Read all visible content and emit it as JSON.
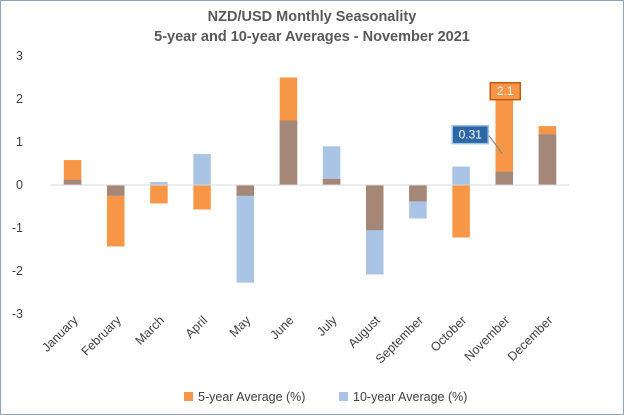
{
  "chart_data": {
    "type": "bar",
    "title": "NZD/USD Monthly Seasonality",
    "subtitle": "5-year and 10-year Averages - November 2021",
    "xlabel": "",
    "ylabel": "",
    "ylim": [
      -3,
      3
    ],
    "yticks": [
      "3",
      "2",
      "1",
      "0",
      "-1",
      "-2",
      "-3"
    ],
    "grid": false,
    "legend_position": "bottom",
    "categories": [
      "January",
      "February",
      "March",
      "April",
      "May",
      "June",
      "July",
      "August",
      "September",
      "October",
      "November",
      "December"
    ],
    "series": [
      {
        "name": "5-year Average (%)",
        "color": "#f79646",
        "values": [
          0.58,
          -1.43,
          -0.43,
          -0.57,
          -0.25,
          2.5,
          0.14,
          -1.05,
          -0.38,
          -1.22,
          2.1,
          1.37
        ]
      },
      {
        "name": "10-year Average (%)",
        "color": "#a9c4e4",
        "values": [
          0.12,
          -0.25,
          0.07,
          0.72,
          -2.27,
          1.5,
          0.9,
          -2.08,
          -0.78,
          0.43,
          0.31,
          1.18
        ]
      }
    ],
    "annotations": [
      {
        "label": "0.31",
        "category": "November",
        "series": "10-year Average (%)",
        "fill": "#2e67a6",
        "border": "#9dc3e6"
      },
      {
        "label": "2.1",
        "category": "November",
        "series": "5-year Average (%)",
        "fill": "#f79646",
        "border": "#c55a11"
      }
    ],
    "overlap_color": "#a58778"
  }
}
